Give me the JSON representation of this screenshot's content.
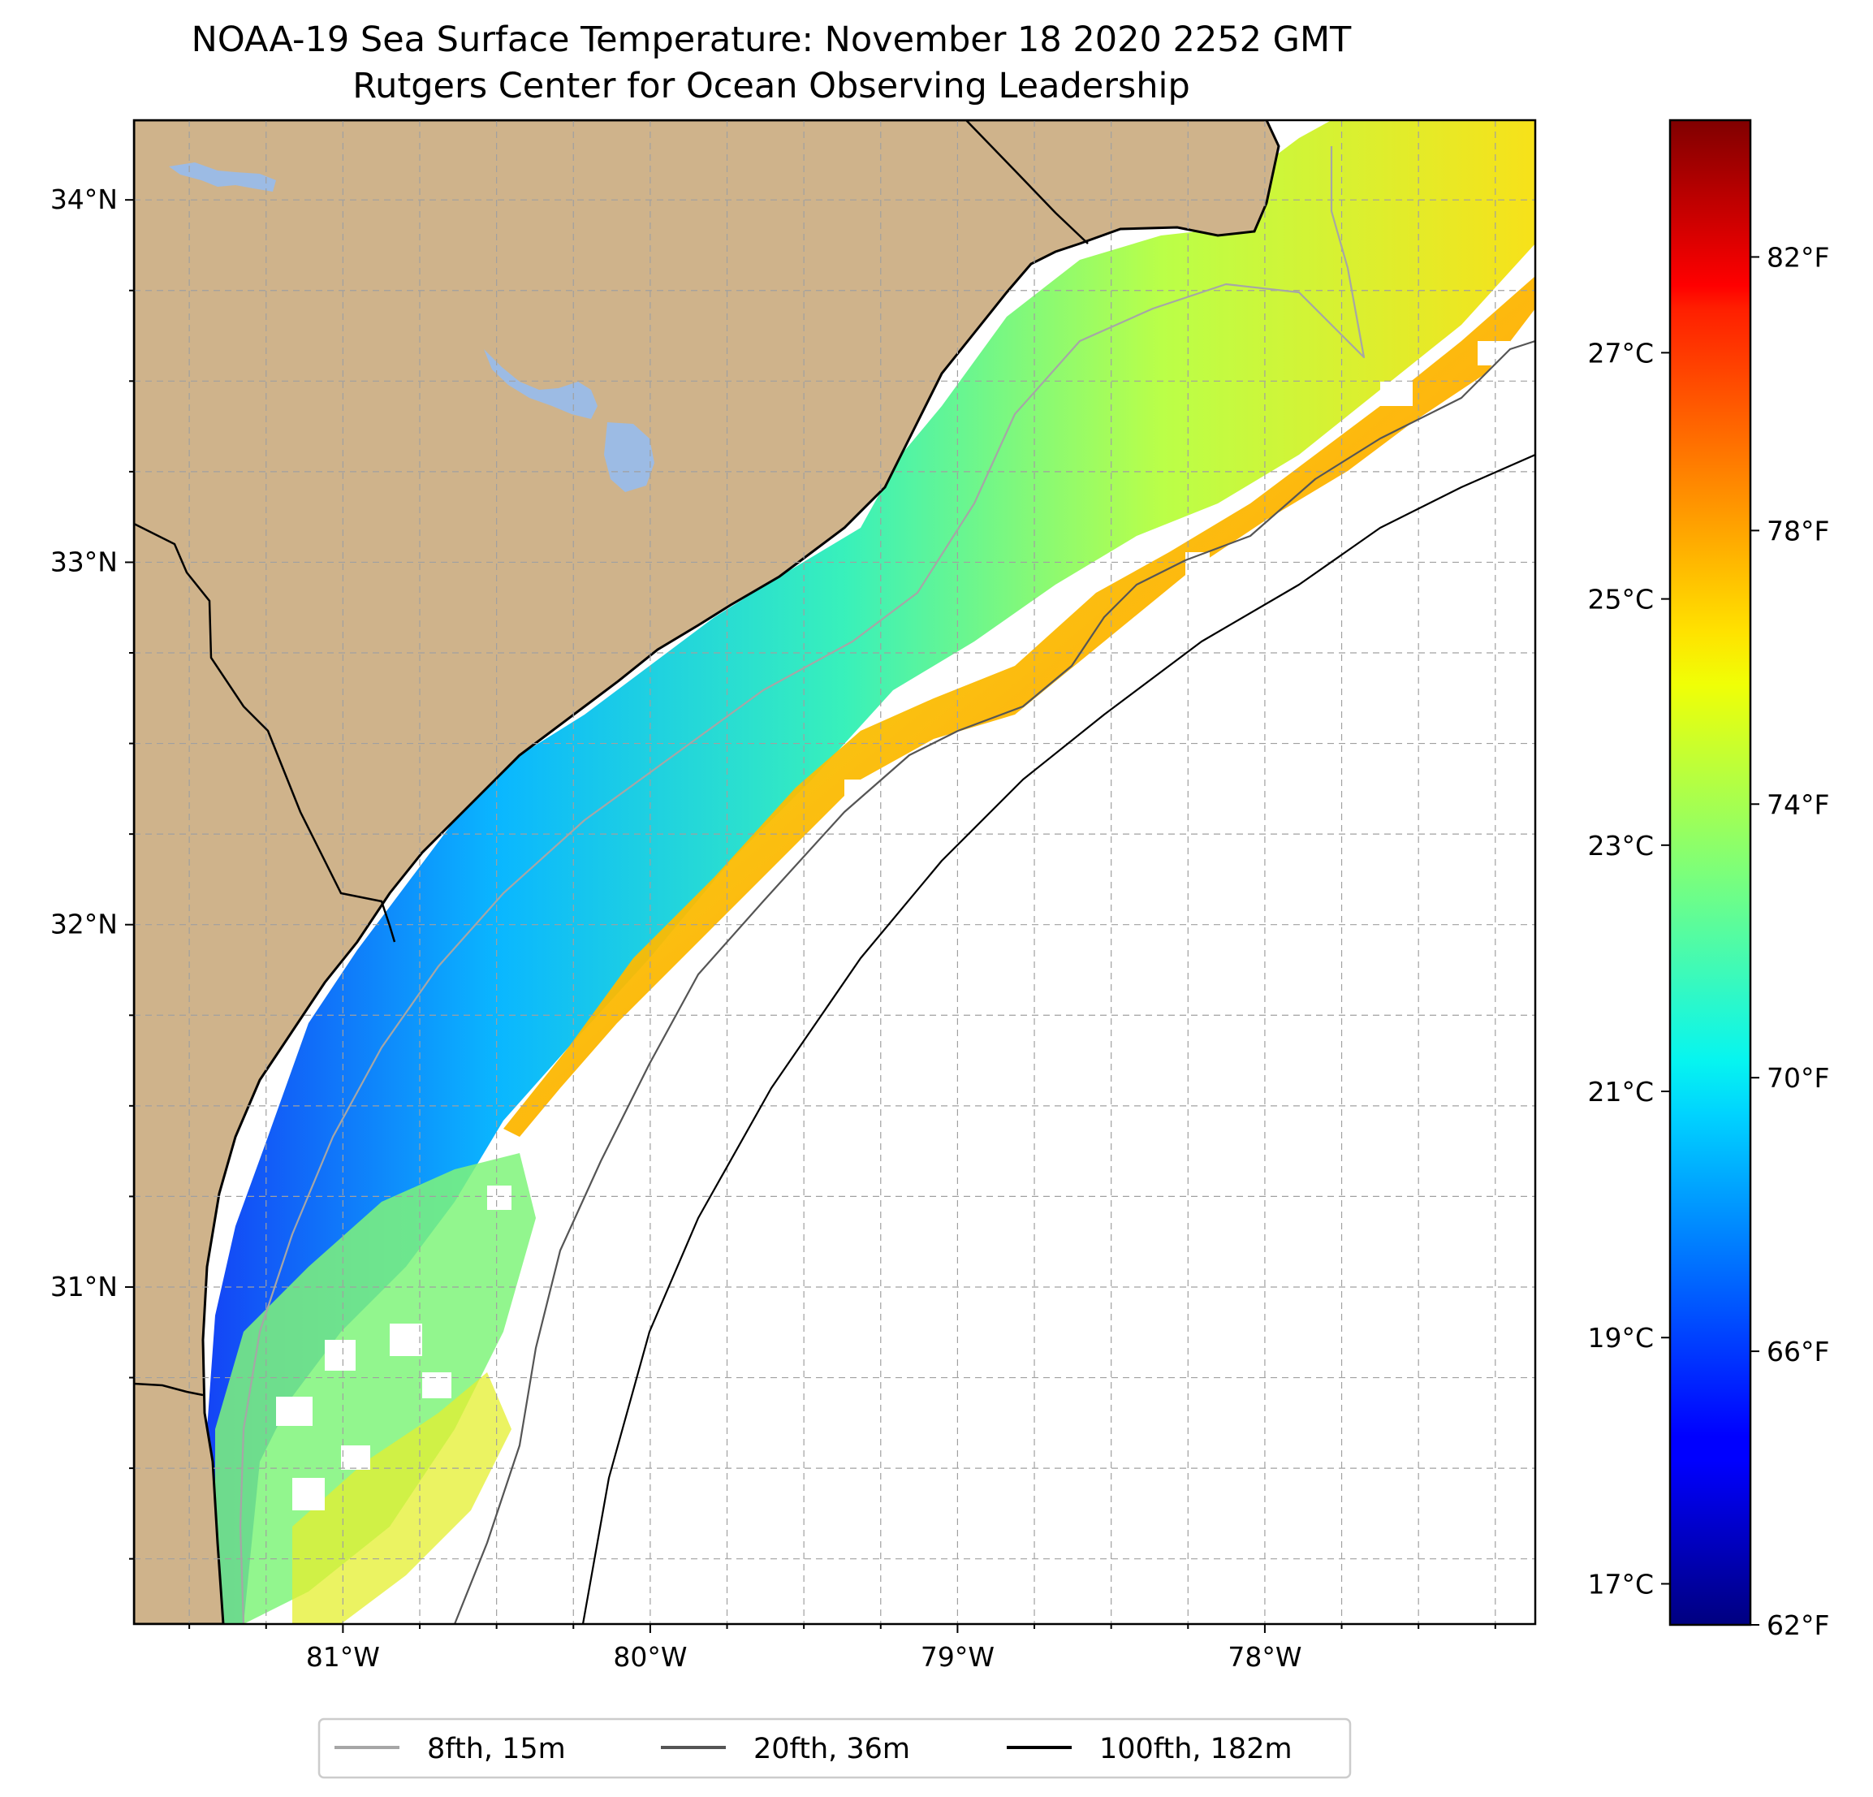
{
  "title": {
    "line1": "NOAA-19 Sea Surface Temperature: November 18 2020 2252 GMT",
    "line2": "Rutgers Center for Ocean Observing Leadership"
  },
  "map": {
    "lat_labels": [
      "34°N",
      "33°N",
      "32°N",
      "31°N"
    ],
    "lon_labels": [
      "81°W",
      "80°W",
      "79°W",
      "78°W"
    ],
    "lat_values": [
      34,
      33,
      32,
      31
    ],
    "lon_values": [
      -81,
      -80,
      -79,
      -78
    ],
    "lon_range": [
      -81.68,
      -77.12
    ],
    "lat_range": [
      30.07,
      34.22
    ],
    "grid": true,
    "land_color": "#cfb38b",
    "lake_color": "#9cbbe4"
  },
  "colorbar": {
    "celsius_labels": [
      "27°C",
      "25°C",
      "23°C",
      "21°C",
      "19°C",
      "17°C"
    ],
    "celsius_values": [
      27,
      25,
      23,
      21,
      19,
      17
    ],
    "fahrenheit_labels": [
      "82°F",
      "78°F",
      "74°F",
      "70°F",
      "66°F",
      "62°F"
    ],
    "fahrenheit_values": [
      82,
      78,
      74,
      70,
      66,
      62
    ],
    "range_f": [
      62,
      84
    ],
    "colormap": "jet"
  },
  "legend": {
    "entries": [
      {
        "label": "8fth, 15m",
        "color": "#a6a6a6"
      },
      {
        "label": "20fth, 36m",
        "color": "#555555"
      },
      {
        "label": "100fth, 182m",
        "color": "#000000"
      }
    ]
  }
}
